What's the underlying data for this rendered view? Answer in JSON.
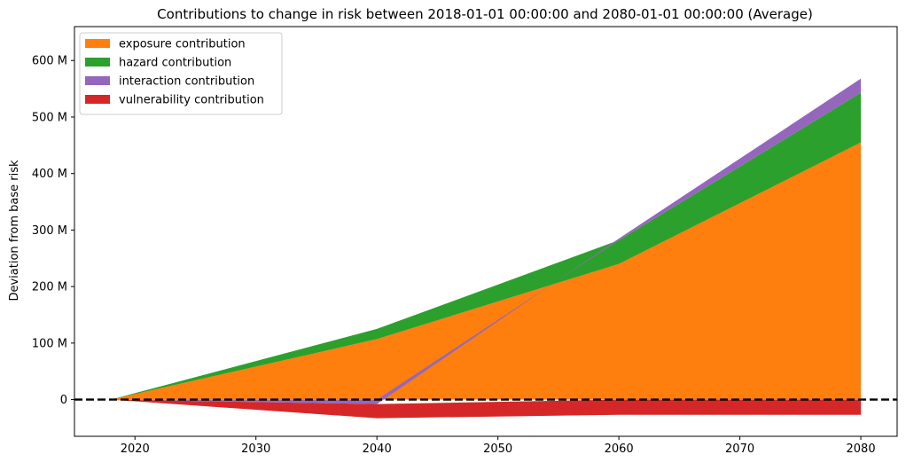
{
  "chart_data": {
    "type": "area",
    "title": "Contributions to change in risk between 2018-01-01 00:00:00 and 2080-01-01 00:00:00 (Average)",
    "xlabel": "",
    "ylabel": "Deviation from base risk",
    "xlim": [
      2015,
      2083
    ],
    "ylim": [
      -65,
      660
    ],
    "x": [
      2018,
      2040,
      2060,
      2080
    ],
    "x_ticks": [
      2020,
      2030,
      2040,
      2050,
      2060,
      2070,
      2080
    ],
    "x_tick_labels": [
      "2020",
      "2030",
      "2040",
      "2050",
      "2060",
      "2070",
      "2080"
    ],
    "y_ticks": [
      0,
      100,
      200,
      300,
      400,
      500,
      600
    ],
    "y_tick_labels": [
      "0",
      "100 M",
      "200 M",
      "300 M",
      "400 M",
      "500 M",
      "600 M"
    ],
    "grid": false,
    "legend_placement": "upper left",
    "legend": [
      {
        "label": "exposure contribution",
        "color": "#ff7f0e"
      },
      {
        "label": "hazard contribution",
        "color": "#2ca02c"
      },
      {
        "label": "interaction contribution",
        "color": "#9467bd"
      },
      {
        "label": "vulnerability contribution",
        "color": "#d62728"
      }
    ],
    "series": [
      {
        "name": "exposure contribution",
        "color": "#ff7f0e",
        "values": [
          0,
          107,
          240,
          455
        ]
      },
      {
        "name": "hazard contribution",
        "color": "#2ca02c",
        "values": [
          0,
          18,
          42,
          88
        ]
      },
      {
        "name": "interaction contribution",
        "color": "#9467bd",
        "values": [
          0,
          -8,
          3,
          25
        ]
      },
      {
        "name": "vulnerability contribution",
        "color": "#d62728",
        "values": [
          0,
          -25,
          -27,
          -27
        ]
      }
    ],
    "baseline": {
      "y": 0,
      "style": "dashed",
      "color": "#000000"
    }
  }
}
